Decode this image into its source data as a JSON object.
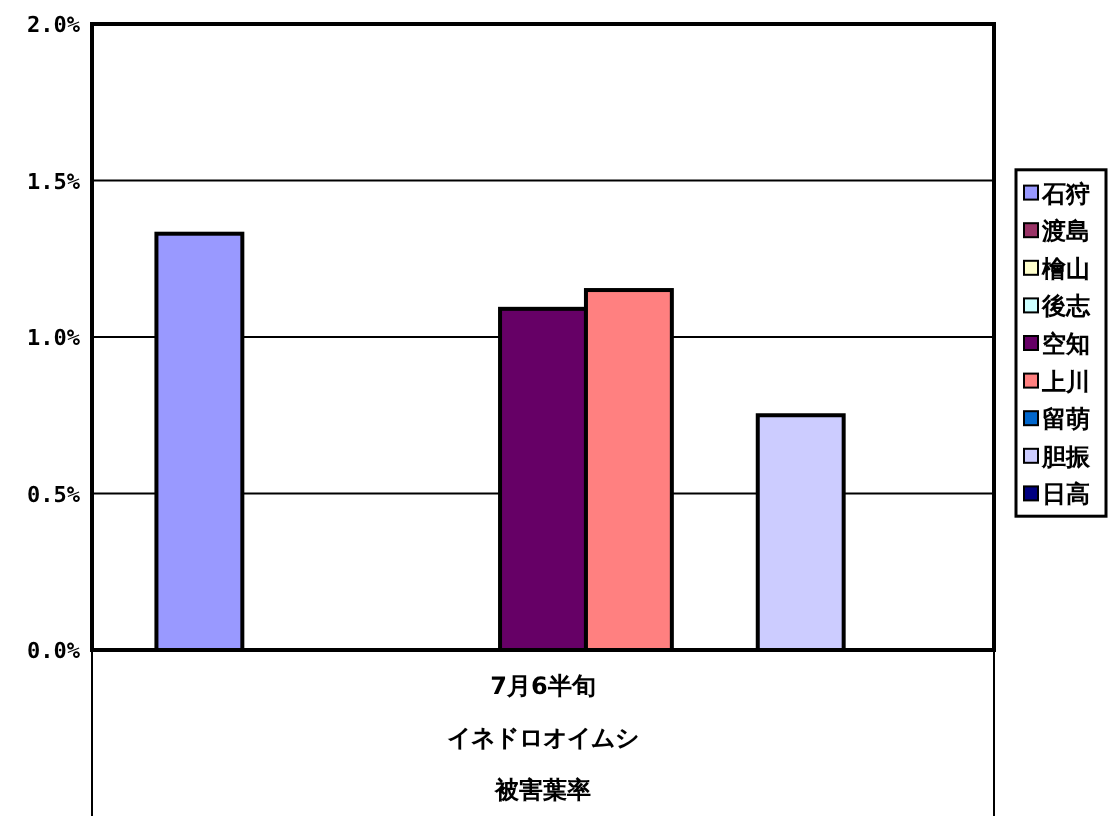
{
  "chart_data": {
    "type": "bar",
    "categories": [
      "7月6半旬"
    ],
    "xlabel": "イネドロオイムシ被害葉率",
    "series": [
      {
        "name": "石狩",
        "color": "#9999ff",
        "values": [
          1.33
        ]
      },
      {
        "name": "渡島",
        "color": "#993366",
        "values": [
          null
        ]
      },
      {
        "name": "檜山",
        "color": "#ffffcc",
        "values": [
          null
        ]
      },
      {
        "name": "後志",
        "color": "#ccffff",
        "values": [
          null
        ]
      },
      {
        "name": "空知",
        "color": "#660066",
        "values": [
          1.09
        ]
      },
      {
        "name": "上川",
        "color": "#ff8080",
        "values": [
          1.15
        ]
      },
      {
        "name": "留萌",
        "color": "#0066cc",
        "values": [
          null
        ]
      },
      {
        "name": "胆振",
        "color": "#ccccff",
        "values": [
          0.75
        ]
      },
      {
        "name": "日高",
        "color": "#000080",
        "values": [
          null
        ]
      }
    ],
    "ylim": [
      0,
      2
    ],
    "yticks": [
      {
        "value": 0,
        "label": "0.0%"
      },
      {
        "value": 0.5,
        "label": "0.5%"
      },
      {
        "value": 1,
        "label": "1.0%"
      },
      {
        "value": 1.5,
        "label": "1.5%"
      },
      {
        "value": 2,
        "label": "2.0%"
      }
    ],
    "grid": "y",
    "legend": "right"
  }
}
